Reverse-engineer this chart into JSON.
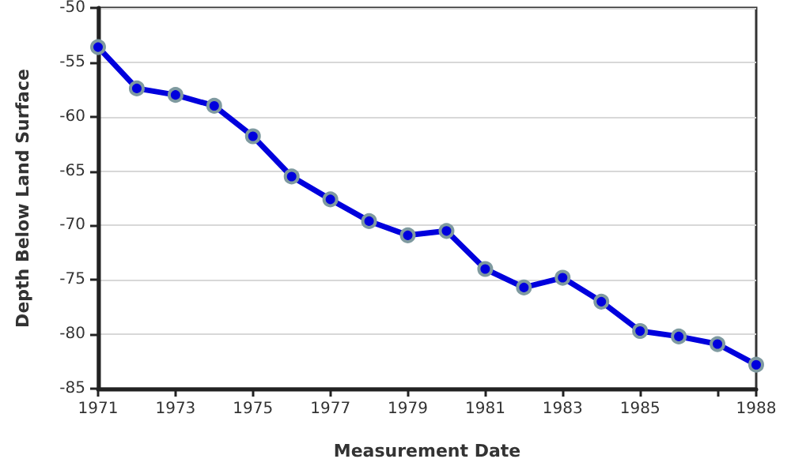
{
  "chart_data": {
    "type": "line",
    "xlabel": "Measurement Date",
    "ylabel": "Depth Below Land Surface",
    "x": [
      1971,
      1972,
      1973,
      1974,
      1975,
      1976,
      1977,
      1978,
      1979,
      1980,
      1981,
      1982,
      1983,
      1984,
      1985,
      1986,
      1987,
      1988
    ],
    "series": [
      {
        "color": "#0000dd",
        "values": [
          -53.6,
          -57.4,
          -58.0,
          -59.0,
          -61.8,
          -65.5,
          -67.6,
          -69.6,
          -70.9,
          -70.5,
          -74.0,
          -75.7,
          -74.8,
          -77.0,
          -79.7,
          -80.2,
          -80.9,
          -82.8
        ]
      }
    ],
    "xlim": [
      1971,
      1988
    ],
    "xticks": [
      1971,
      1973,
      1975,
      1977,
      1979,
      1981,
      1983,
      1985,
      {
        "value": 1987,
        "label": null
      },
      1988
    ],
    "ylim": [
      -85,
      -50
    ],
    "yticks": [
      -85,
      -80,
      -75,
      -70,
      -65,
      -60,
      -55,
      -50
    ],
    "grid": "y",
    "marker": "circle",
    "line_style": "solid"
  }
}
